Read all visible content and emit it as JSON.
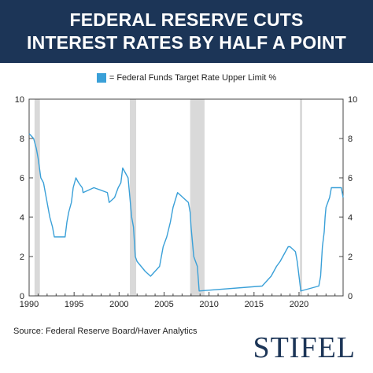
{
  "title_line1": "FEDERAL RESERVE CUTS",
  "title_line2": "INTEREST RATES BY HALF A POINT",
  "legend_label": "= Federal Funds Target Rate Upper Limit %",
  "source": "Source: Federal Reserve Board/Haver Analytics",
  "logo_text": "STIFEL",
  "colors": {
    "header": "#1c3557",
    "line": "#3aa0d8",
    "recession": "#d9d9d9"
  },
  "chart_data": {
    "type": "line",
    "title": "FEDERAL RESERVE CUTS INTEREST RATES BY HALF A POINT",
    "xlabel": "",
    "ylabel": "",
    "xlim": [
      1990,
      2024.9
    ],
    "ylim": [
      0,
      10
    ],
    "x_ticks": [
      "1990",
      "1995",
      "2000",
      "2005",
      "2010",
      "2015",
      "2020"
    ],
    "x_tick_values": [
      1990,
      1995,
      2000,
      2005,
      2010,
      2015,
      2020
    ],
    "y_ticks": [
      "0",
      "2",
      "4",
      "6",
      "8",
      "10"
    ],
    "y_tick_values": [
      0,
      2,
      4,
      6,
      8,
      10
    ],
    "grid": false,
    "legend_position": "top-center",
    "recessions": [
      [
        1990.6,
        1991.2
      ],
      [
        2001.2,
        2001.9
      ],
      [
        2007.9,
        2009.5
      ],
      [
        2020.1,
        2020.35
      ]
    ],
    "series": [
      {
        "name": "Federal Funds Target Rate Upper Limit %",
        "x": [
          1990.0,
          1990.5,
          1990.8,
          1991.0,
          1991.3,
          1991.6,
          1991.9,
          1992.3,
          1992.6,
          1992.8,
          1994.0,
          1994.2,
          1994.4,
          1994.7,
          1994.9,
          1995.2,
          1995.5,
          1995.9,
          1996.0,
          1997.2,
          1998.7,
          1998.9,
          1999.5,
          1999.9,
          2000.2,
          2000.4,
          2001.0,
          2001.2,
          2001.4,
          2001.6,
          2001.8,
          2002.0,
          2002.9,
          2003.5,
          2004.5,
          2004.7,
          2004.9,
          2005.3,
          2005.7,
          2006.0,
          2006.5,
          2007.7,
          2007.9,
          2008.0,
          2008.1,
          2008.3,
          2008.7,
          2008.9,
          2015.9,
          2016.9,
          2017.2,
          2017.5,
          2017.9,
          2018.2,
          2018.5,
          2018.8,
          2019.0,
          2019.6,
          2019.7,
          2019.8,
          2020.2,
          2022.2,
          2022.4,
          2022.5,
          2022.6,
          2022.8,
          2022.9,
          2023.0,
          2023.2,
          2023.4,
          2023.6,
          2024.7,
          2024.9
        ],
        "values": [
          8.25,
          8.0,
          7.5,
          7.0,
          6.0,
          5.75,
          5.0,
          4.0,
          3.5,
          3.0,
          3.0,
          3.75,
          4.25,
          4.75,
          5.5,
          6.0,
          5.75,
          5.5,
          5.25,
          5.5,
          5.25,
          4.75,
          5.0,
          5.5,
          5.75,
          6.5,
          6.0,
          5.0,
          4.0,
          3.5,
          2.0,
          1.75,
          1.25,
          1.0,
          1.5,
          2.0,
          2.5,
          3.0,
          3.75,
          4.5,
          5.25,
          4.75,
          4.25,
          3.5,
          3.0,
          2.0,
          1.5,
          0.25,
          0.5,
          1.0,
          1.25,
          1.5,
          1.75,
          2.0,
          2.25,
          2.5,
          2.5,
          2.25,
          2.0,
          1.75,
          0.25,
          0.5,
          1.0,
          1.75,
          2.5,
          3.25,
          4.0,
          4.5,
          4.75,
          5.0,
          5.5,
          5.5,
          5.0
        ]
      }
    ]
  }
}
